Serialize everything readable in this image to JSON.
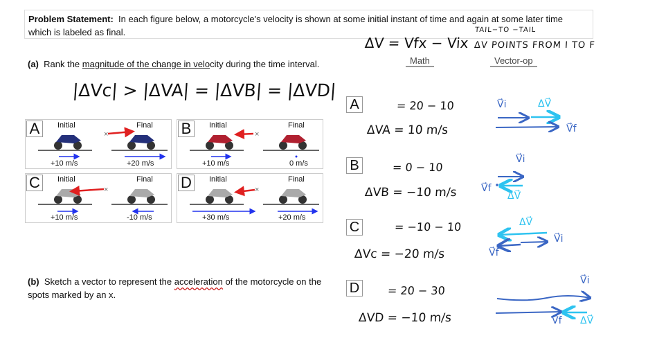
{
  "problem": {
    "label": "Problem Statement:",
    "line1": "In each figure below, a motorcycle's velocity is shown at some initial instant of time and again at some later time",
    "line2": "which is labeled as final."
  },
  "part_a": {
    "label": "(a)",
    "pre": "Rank the ",
    "underlined": "magnitude of the change in velo",
    "post": "city during the time interval.",
    "answer": "|ΔVc| > |ΔVA| = |ΔVB| = |ΔVD|"
  },
  "part_b": {
    "label": "(b)",
    "pre": "Sketch a vector to represent the ",
    "underlined": "acceleration",
    "post": " of the motorcycle on the",
    "line2": "spots marked by an x."
  },
  "panels": [
    {
      "letter": "A",
      "initial": "Initial",
      "final": "Final",
      "vi": "+10 m/s",
      "vf": "+20 m/s"
    },
    {
      "letter": "B",
      "initial": "Initial",
      "final": "Final",
      "vi": "+10 m/s",
      "vf": "0 m/s"
    },
    {
      "letter": "C",
      "initial": "Initial",
      "final": "Final",
      "vi": "+10 m/s",
      "vf": "-10 m/s"
    },
    {
      "letter": "D",
      "initial": "Initial",
      "final": "Final",
      "vi": "+30 m/s",
      "vf": "+20 m/s"
    }
  ],
  "notes": {
    "formula": "ΔV = Vfx − Vix",
    "tail": "TAIL−TO −TAIL",
    "points": "ΔV POINTS FROM I TO F",
    "math_header": "Math",
    "vector_header": "Vector-op"
  },
  "work": [
    {
      "letter": "A",
      "step": "= 20 − 10",
      "result": "ΔVA = 10 m/s"
    },
    {
      "letter": "B",
      "step": "= 0 − 10",
      "result": "ΔVB = −10 m/s"
    },
    {
      "letter": "C",
      "step": "= −10 − 10",
      "result": "ΔVc = −20 m/s"
    },
    {
      "letter": "D",
      "step": "= 20 − 30",
      "result": "ΔVD = −10 m/s"
    }
  ],
  "vector_labels": {
    "vi": "V⃗i",
    "vf": "V⃗f",
    "dv": "ΔV⃗"
  },
  "colors": {
    "blue_ink": "#3a66c4",
    "cyan_ink": "#2ec3f0",
    "red_ink": "#e02020",
    "arrow_blue": "#2233ee"
  }
}
